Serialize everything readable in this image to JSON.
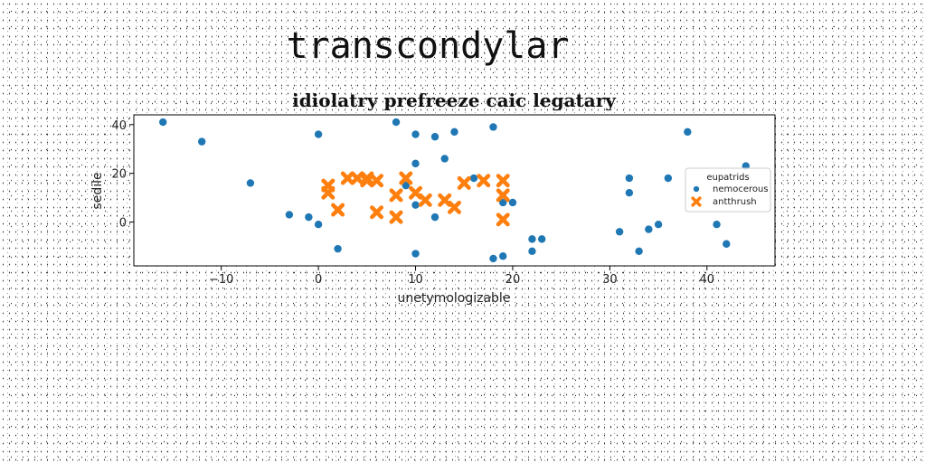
{
  "page": {
    "heading": "transcondylar"
  },
  "chart_data": {
    "type": "scatter",
    "title": "idiolatry prefreeze caic legatary",
    "xlabel": "unetymologizable",
    "ylabel": "sedile",
    "xlim": [
      -19,
      47
    ],
    "ylim": [
      -18,
      44
    ],
    "xticks": [
      -10,
      0,
      10,
      20,
      30,
      40
    ],
    "yticks": [
      0,
      20,
      40
    ],
    "xtick_labels": [
      "−10",
      "0",
      "10",
      "20",
      "30",
      "40"
    ],
    "ytick_labels": [
      "0",
      "20",
      "40"
    ],
    "grid": false,
    "legend": {
      "title": "eupatrids",
      "placement": "right"
    },
    "series": [
      {
        "name": "nemocerous",
        "color": "#1f77b4",
        "marker": "circle",
        "points": [
          [
            -16,
            41
          ],
          [
            -12,
            33
          ],
          [
            -7,
            16
          ],
          [
            -3,
            3
          ],
          [
            -1,
            2
          ],
          [
            0,
            36
          ],
          [
            0,
            -1
          ],
          [
            2,
            -11
          ],
          [
            8,
            41
          ],
          [
            9,
            15
          ],
          [
            10,
            36
          ],
          [
            10,
            24
          ],
          [
            10,
            7
          ],
          [
            10,
            -13
          ],
          [
            12,
            35
          ],
          [
            12,
            2
          ],
          [
            13,
            26
          ],
          [
            14,
            37
          ],
          [
            16,
            18
          ],
          [
            18,
            39
          ],
          [
            18,
            -15
          ],
          [
            19,
            8
          ],
          [
            19,
            -14
          ],
          [
            20,
            8
          ],
          [
            22,
            -7
          ],
          [
            22,
            -12
          ],
          [
            23,
            -7
          ],
          [
            31,
            -4
          ],
          [
            32,
            18
          ],
          [
            32,
            12
          ],
          [
            33,
            -12
          ],
          [
            34,
            -3
          ],
          [
            35,
            -1
          ],
          [
            36,
            18
          ],
          [
            38,
            37
          ],
          [
            41,
            -1
          ],
          [
            42,
            -9
          ],
          [
            44,
            23
          ]
        ]
      },
      {
        "name": "antthrush",
        "color": "#ff7f0e",
        "marker": "x",
        "points": [
          [
            1,
            15
          ],
          [
            1,
            12
          ],
          [
            2,
            5
          ],
          [
            3,
            18
          ],
          [
            4,
            18
          ],
          [
            5,
            18
          ],
          [
            5,
            17
          ],
          [
            6,
            17
          ],
          [
            6,
            4
          ],
          [
            8,
            11
          ],
          [
            8,
            2
          ],
          [
            9,
            18
          ],
          [
            10,
            12
          ],
          [
            11,
            9
          ],
          [
            13,
            9
          ],
          [
            14,
            6
          ],
          [
            15,
            16
          ],
          [
            17,
            17
          ],
          [
            19,
            17
          ],
          [
            19,
            11
          ],
          [
            19,
            1
          ]
        ]
      }
    ]
  }
}
